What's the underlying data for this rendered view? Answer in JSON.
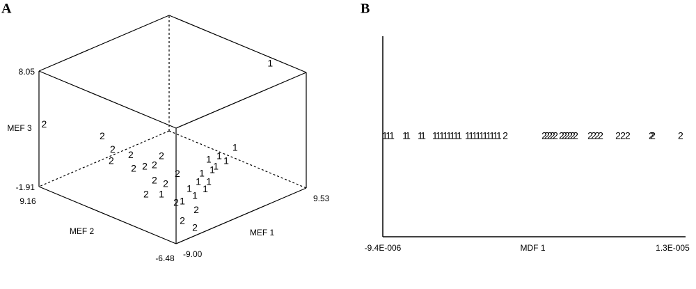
{
  "chart_data": [
    {
      "type": "scatter3d",
      "panel": "A",
      "xlabel": "MEF 1",
      "ylabel": "MEF 2",
      "zlabel": "MEF 3",
      "xlim": [
        -9,
        9.53
      ],
      "ylim": [
        -6.48,
        9.16
      ],
      "zlim": [
        -1.91,
        8.05
      ],
      "xticks": [
        {
          "value": -9,
          "label": "-9.00"
        },
        9.53
      ],
      "yticks": [
        -6.48,
        9.16
      ],
      "zticks": [
        -1.91,
        8.05
      ],
      "series": [
        {
          "name": "1",
          "color": "#000000",
          "x": [
            8.42,
            5.38,
            2.86,
            1.53,
            0.02,
            -1.29,
            -2.22,
            -2.96,
            -4.76,
            -7.37,
            -5.54,
            -7.65,
            0.86,
            2.53,
            -3.65
          ],
          "y": [
            -3.26,
            -1.69,
            -1.9,
            -1.77,
            -3.38,
            -3.24,
            -4.78,
            -4.18,
            -4.59,
            -5.89,
            -5.85,
            -3.73,
            -3.12,
            -2.96,
            -5.53
          ],
          "z": [
            8.05,
            1.08,
            1.08,
            1.08,
            1.08,
            1.08,
            1.08,
            1.08,
            1.08,
            1.08,
            1.08,
            1.08,
            1.08,
            1.08,
            1.08
          ]
        },
        {
          "name": "2",
          "color": "#000000",
          "x": [
            -8.95,
            -1.96,
            -3.46,
            -5.53,
            -3.13,
            -1.2,
            -5.26,
            -4.13,
            -3.22,
            -5.79,
            -5.61,
            -8.74,
            -3.03,
            -8.04,
            -4.87,
            -6.76,
            -6.07
          ],
          "y": [
            8.61,
            7.58,
            5.19,
            3.69,
            3.39,
            1.43,
            1.36,
            0.99,
            0.62,
            -1.44,
            -2.57,
            -2.85,
            -1.85,
            -5.71,
            -5.48,
            -5.4,
            -6.28
          ],
          "z": [
            3.57,
            1.08,
            1.08,
            1.08,
            1.08,
            1.08,
            1.08,
            1.08,
            1.08,
            1.08,
            1.08,
            1.08,
            1.08,
            1.08,
            -0.42,
            -0.91,
            -1.41
          ]
        }
      ]
    },
    {
      "type": "strip",
      "panel": "B",
      "xlabel": "MDF 1",
      "xlim": [
        -9.4e-06,
        1.4e-05
      ],
      "xticks": [
        {
          "value": -9.4e-06,
          "label": "-9.4E-006"
        },
        {
          "value": 1.3e-05,
          "label": "1.3E-005"
        }
      ],
      "series": [
        {
          "name": "1",
          "color": "#000000",
          "x": [
            -9.24e-06,
            -8.97e-06,
            -8.7e-06,
            -7.68e-06,
            -7.46e-06,
            -6.5e-06,
            -6.28e-06,
            -5.37e-06,
            -5.1e-06,
            -4.83e-06,
            -4.56e-06,
            -4.29e-06,
            -4.02e-06,
            -3.75e-06,
            -3.48e-06,
            -2.84e-06,
            -2.57e-06,
            -2.3e-06,
            -2.03e-06,
            -1.76e-06,
            -1.49e-06,
            -1.22e-06,
            -9.5e-07,
            -6.9e-07,
            -4.2e-07
          ]
        },
        {
          "name": "2",
          "color": "#000000",
          "x": [
            7e-08,
            3.08e-06,
            3.29e-06,
            3.51e-06,
            3.72e-06,
            3.94e-06,
            4.42e-06,
            4.64e-06,
            4.85e-06,
            5.07e-06,
            5.28e-06,
            5.5e-06,
            6.63e-06,
            6.9e-06,
            7.17e-06,
            7.44e-06,
            8.78e-06,
            9.16e-06,
            9.53e-06,
            1.136e-05,
            1.147e-05,
            1.362e-05
          ]
        }
      ]
    }
  ]
}
